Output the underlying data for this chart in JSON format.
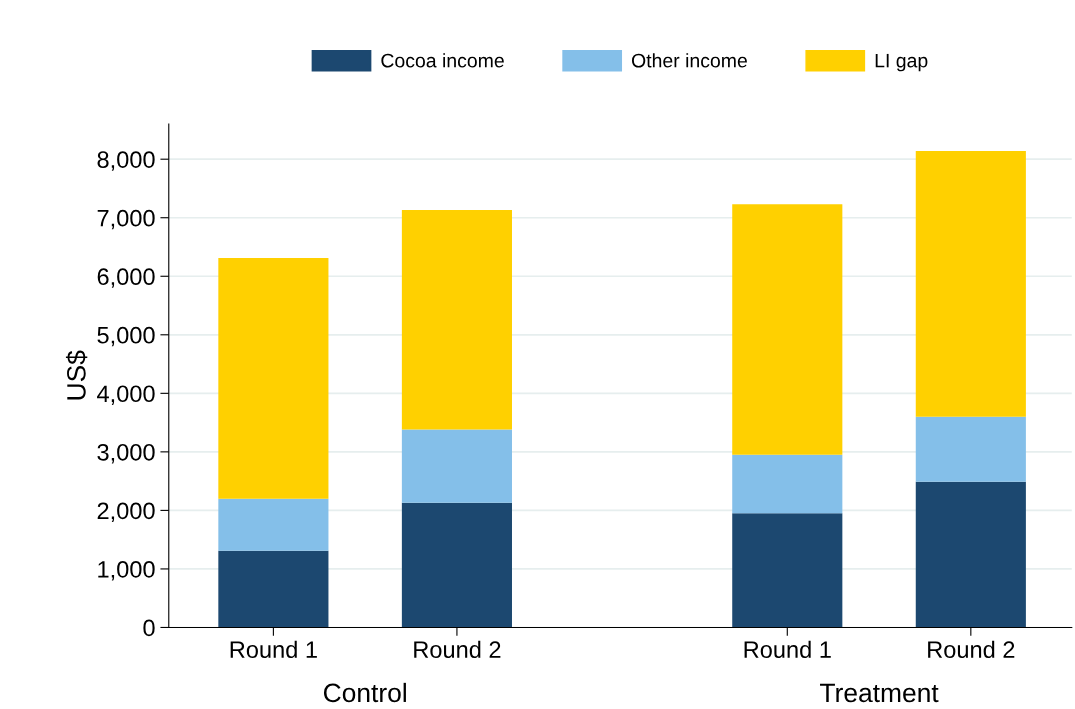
{
  "chart_data": {
    "type": "bar",
    "stacked": true,
    "ylabel": "US$",
    "categories": [
      "Round 1",
      "Round 2",
      "Round 1",
      "Round 2"
    ],
    "series": [
      {
        "name": "Cocoa income",
        "color": "#1c4870",
        "values": [
          1310,
          2130,
          1950,
          2490
        ]
      },
      {
        "name": "Other income",
        "color": "#84bfe9",
        "values": [
          890,
          1250,
          1000,
          1110
        ]
      },
      {
        "name": "LI gap",
        "color": "#ffd000",
        "values": [
          4110,
          3750,
          4280,
          4540
        ]
      }
    ],
    "annotations": [
      "Control",
      "Treatment"
    ],
    "ylim": [
      0,
      8600
    ],
    "yticks": [
      0,
      {
        "value": 1000,
        "label": "1,000"
      },
      {
        "value": 2000,
        "label": "2,000"
      },
      {
        "value": 3000,
        "label": "3,000"
      },
      {
        "value": 4000,
        "label": "4,000"
      },
      {
        "value": 5000,
        "label": "5,000"
      },
      {
        "value": 6000,
        "label": "6,000"
      },
      {
        "value": 7000,
        "label": "7,000"
      },
      {
        "value": 8000,
        "label": "8,000"
      }
    ],
    "grid": "y",
    "legend": "top"
  }
}
